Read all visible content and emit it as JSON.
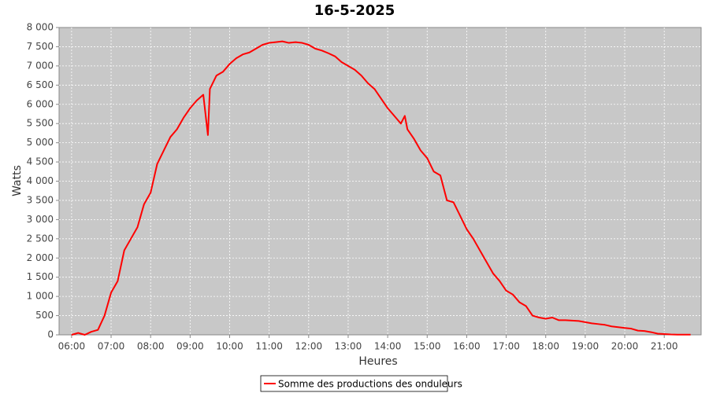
{
  "chart_data": {
    "type": "line",
    "title": "16-5-2025",
    "x_label": "Heures",
    "y_label": "Watts",
    "x": [
      "06:00",
      "06:10",
      "06:20",
      "06:30",
      "06:40",
      "06:50",
      "07:00",
      "07:10",
      "07:20",
      "07:30",
      "07:40",
      "07:50",
      "08:00",
      "08:10",
      "08:20",
      "08:30",
      "08:40",
      "08:50",
      "09:00",
      "09:10",
      "09:20",
      "09:27",
      "09:30",
      "09:40",
      "09:50",
      "10:00",
      "10:10",
      "10:20",
      "10:30",
      "10:40",
      "10:50",
      "11:00",
      "11:10",
      "11:20",
      "11:30",
      "11:40",
      "11:50",
      "12:00",
      "12:10",
      "12:20",
      "12:30",
      "12:40",
      "12:50",
      "13:00",
      "13:10",
      "13:20",
      "13:30",
      "13:40",
      "13:50",
      "14:00",
      "14:10",
      "14:20",
      "14:26",
      "14:30",
      "14:40",
      "14:50",
      "15:00",
      "15:10",
      "15:20",
      "15:30",
      "15:40",
      "15:50",
      "16:00",
      "16:10",
      "16:20",
      "16:30",
      "16:40",
      "16:50",
      "17:00",
      "17:10",
      "17:20",
      "17:30",
      "17:40",
      "17:50",
      "18:00",
      "18:10",
      "18:20",
      "18:30",
      "18:40",
      "18:50",
      "19:00",
      "19:10",
      "19:20",
      "19:30",
      "19:40",
      "19:50",
      "20:00",
      "20:10",
      "20:20",
      "20:30",
      "20:40",
      "20:50",
      "21:00",
      "21:10",
      "21:20",
      "21:30",
      "21:40"
    ],
    "series": [
      {
        "name": "Somme des productions des onduleurs",
        "color": "#ff0000",
        "values": [
          0,
          50,
          0,
          80,
          130,
          500,
          1100,
          1400,
          2200,
          2500,
          2800,
          3400,
          3700,
          4450,
          4800,
          5150,
          5350,
          5650,
          5900,
          6100,
          6250,
          5200,
          6400,
          6750,
          6850,
          7050,
          7200,
          7300,
          7350,
          7450,
          7550,
          7600,
          7620,
          7640,
          7600,
          7620,
          7600,
          7550,
          7450,
          7400,
          7330,
          7250,
          7100,
          7000,
          6900,
          6750,
          6550,
          6400,
          6150,
          5900,
          5700,
          5500,
          5700,
          5350,
          5100,
          4800,
          4600,
          4250,
          4150,
          3500,
          3450,
          3100,
          2750,
          2500,
          2200,
          1900,
          1600,
          1400,
          1150,
          1050,
          850,
          750,
          500,
          450,
          420,
          450,
          380,
          380,
          370,
          360,
          330,
          300,
          280,
          260,
          220,
          200,
          180,
          160,
          110,
          100,
          70,
          30,
          20,
          10,
          5,
          5,
          5
        ]
      }
    ],
    "xlim": [
      "05:41",
      "21:56"
    ],
    "xticks": [
      "06:00",
      "07:00",
      "08:00",
      "09:00",
      "10:00",
      "11:00",
      "12:00",
      "13:00",
      "14:00",
      "15:00",
      "16:00",
      "17:00",
      "18:00",
      "19:00",
      "20:00",
      "21:00"
    ],
    "ylim": [
      0,
      8000
    ],
    "yticks": [
      0,
      500,
      {
        "value": 1000,
        "label": "1 000"
      },
      {
        "value": 1500,
        "label": "1 500"
      },
      {
        "value": 2000,
        "label": "2 000"
      },
      {
        "value": 2500,
        "label": "2 500"
      },
      {
        "value": 3000,
        "label": "3 000"
      },
      {
        "value": 3500,
        "label": "3 500"
      },
      {
        "value": 4000,
        "label": "4 000"
      },
      {
        "value": 4500,
        "label": "4 500"
      },
      {
        "value": 5000,
        "label": "5 000"
      },
      {
        "value": 5500,
        "label": "5 500"
      },
      {
        "value": 6000,
        "label": "6 000"
      },
      {
        "value": 6500,
        "label": "6 500"
      },
      {
        "value": 7000,
        "label": "7 000"
      },
      {
        "value": 7500,
        "label": "7 500"
      },
      {
        "value": 8000,
        "label": "8 000"
      }
    ],
    "grid": true,
    "legend": "bottom"
  }
}
